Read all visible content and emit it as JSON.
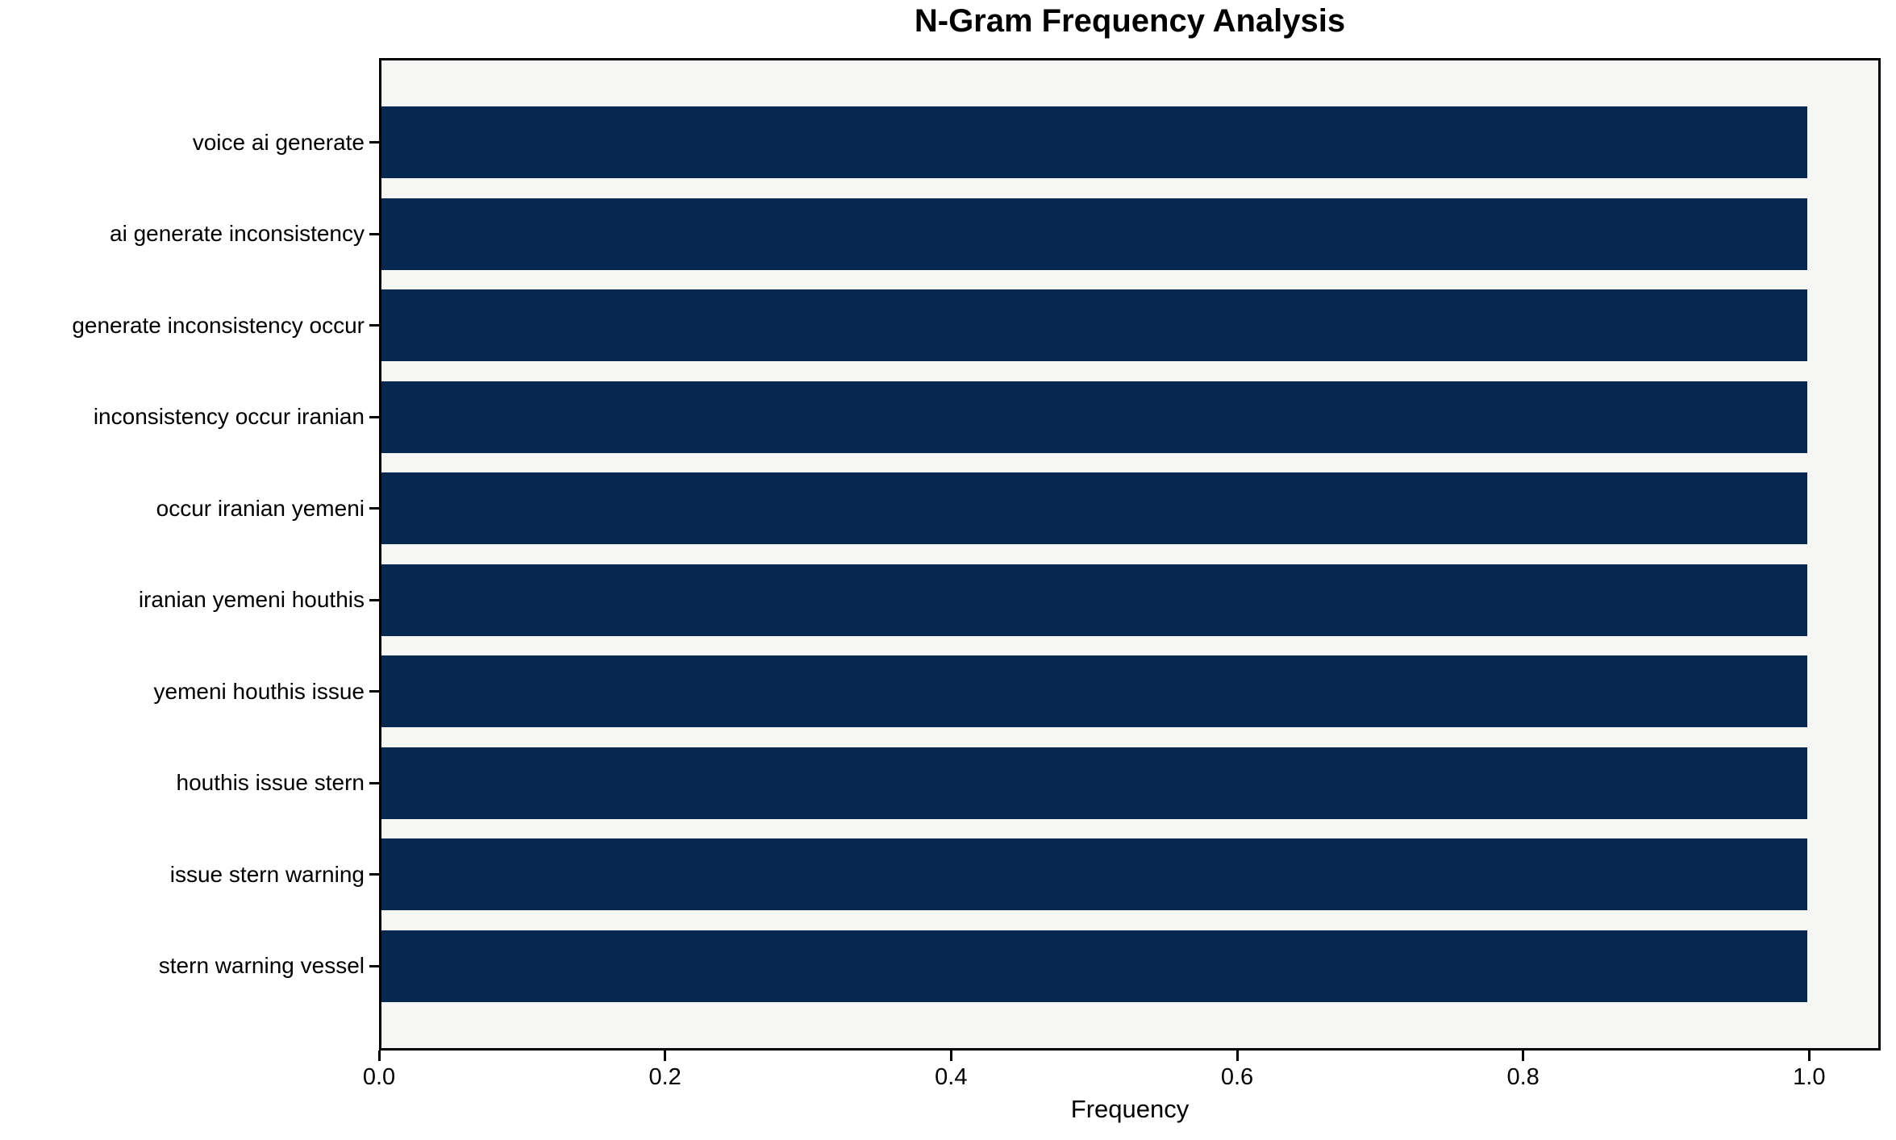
{
  "chart_data": {
    "type": "bar",
    "orientation": "horizontal",
    "title": "N-Gram Frequency Analysis",
    "xlabel": "Frequency",
    "ylabel": "",
    "categories": [
      "voice ai generate",
      "ai generate inconsistency",
      "generate inconsistency occur",
      "inconsistency occur iranian",
      "occur iranian yemeni",
      "iranian yemeni houthis",
      "yemeni houthis issue",
      "houthis issue stern",
      "issue stern warning",
      "stern warning vessel"
    ],
    "values": [
      1.0,
      1.0,
      1.0,
      1.0,
      1.0,
      1.0,
      1.0,
      1.0,
      1.0,
      1.0
    ],
    "x_ticks": [
      0.0,
      0.2,
      0.4,
      0.6,
      0.8,
      1.0
    ],
    "x_tick_labels": [
      "0.0",
      "0.2",
      "0.4",
      "0.6",
      "0.8",
      "1.0"
    ],
    "xlim": [
      0,
      1.05
    ],
    "grid": false,
    "legend_position": "none",
    "colors": {
      "bar": "#062750",
      "plot_background": "#f6f6f5",
      "figure_background": "#ffffff",
      "spine": "#000000",
      "text": "#000000"
    }
  }
}
